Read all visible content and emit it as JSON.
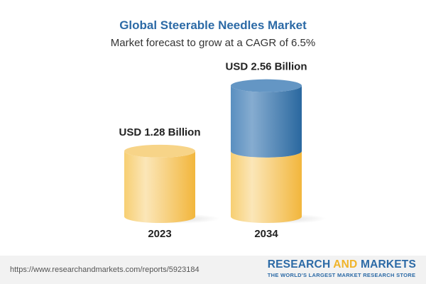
{
  "title": "Global Steerable Needles Market",
  "subtitle": "Market forecast to grow at a CAGR of 6.5%",
  "chart_data": {
    "type": "bar",
    "style": "3d-cylinder",
    "categories": [
      "2023",
      "2034"
    ],
    "values": [
      1.28,
      2.56
    ],
    "data_labels": [
      "USD 1.28 Billion",
      "USD 2.56 Billion"
    ],
    "unit": "USD Billion",
    "colors": {
      "base": "#f5c65a",
      "growth": "#3f7fb5"
    }
  },
  "footer": {
    "url": "https://www.researchandmarkets.com/reports/5923184",
    "logo_part1": "RESEARCH ",
    "logo_part2": "AND",
    "logo_part3": " MARKETS",
    "tagline": "THE WORLD'S LARGEST MARKET RESEARCH STORE"
  }
}
